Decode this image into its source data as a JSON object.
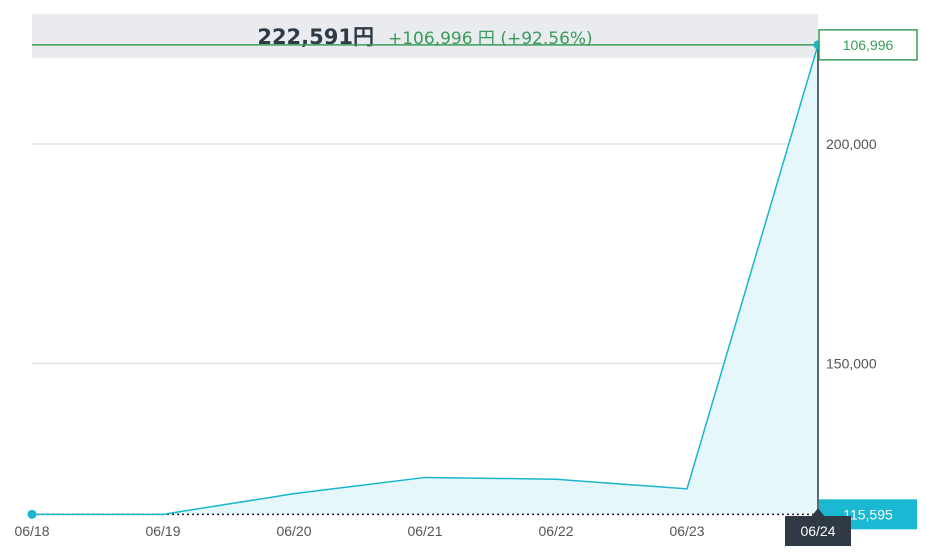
{
  "summary": {
    "value": "222,591円",
    "change": "+106,996 円 (+92.56%)"
  },
  "colors": {
    "line": "#19b6cc",
    "area": "#e6f7fb",
    "target_line": "#3a9c5c",
    "base_badge": "#1ab8d2",
    "date_badge": "#2f3a44",
    "grid": "#e3e3e3"
  },
  "chart_data": {
    "type": "area",
    "x": [
      "06/18",
      "06/19",
      "06/20",
      "06/21",
      "06/22",
      "06/23",
      "06/24"
    ],
    "series": [
      {
        "values": [
          115595,
          115595,
          120300,
          124000,
          123600,
          121400,
          222591
        ]
      }
    ],
    "y_ticks": [
      "200,000",
      "150,000"
    ],
    "ylim": [
      114300,
      223700
    ],
    "grid": true,
    "reference_lines": {
      "top_value": 222591,
      "top_label": "106,996",
      "base_value": 115595,
      "base_label": "115,595"
    },
    "highlight_x_label": "06/24"
  }
}
